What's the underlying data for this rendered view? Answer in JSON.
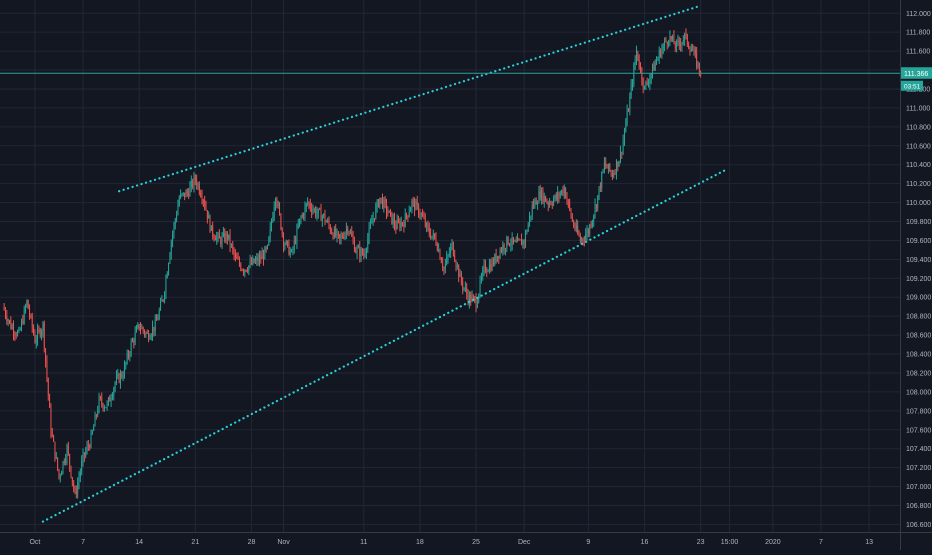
{
  "colors": {
    "background": "#131722",
    "grid": "#232735",
    "up": "#26a69a",
    "down": "#ef5350",
    "trendline": "#2ad0d8",
    "axis_text": "#b2b5be",
    "price_line": "#26a69a"
  },
  "chart_data": {
    "type": "candlestick",
    "title": "",
    "xlabel": "",
    "ylabel": "",
    "ylim": [
      106.52,
      112.14
    ],
    "y_ticks": [
      "106.600",
      "106.800",
      "107.000",
      "107.200",
      "107.400",
      "107.600",
      "107.800",
      "108.000",
      "108.200",
      "108.400",
      "108.600",
      "108.800",
      "109.000",
      "109.200",
      "109.400",
      "109.600",
      "109.800",
      "110.000",
      "110.200",
      "110.400",
      "110.600",
      "110.800",
      "111.000",
      "111.200",
      "111.400",
      "111.600",
      "111.800",
      "112.000"
    ],
    "x_ticks": [
      {
        "label": "Oct",
        "day": 0
      },
      {
        "label": "7",
        "day": 6
      },
      {
        "label": "14",
        "day": 13
      },
      {
        "label": "21",
        "day": 20
      },
      {
        "label": "28",
        "day": 27
      },
      {
        "label": "Nov",
        "day": 31
      },
      {
        "label": "11",
        "day": 41
      },
      {
        "label": "18",
        "day": 48
      },
      {
        "label": "25",
        "day": 55
      },
      {
        "label": "Dec",
        "day": 61
      },
      {
        "label": "9",
        "day": 69
      },
      {
        "label": "16",
        "day": 76
      },
      {
        "label": "23",
        "day": 83
      },
      {
        "label": "15:00",
        "day": 86.6
      },
      {
        "label": "2020",
        "day": 92
      },
      {
        "label": "7",
        "day": 98
      },
      {
        "label": "13",
        "day": 104
      }
    ],
    "x_range_days": [
      -4.35,
      107.85
    ],
    "current_price": {
      "value": 111.366,
      "label": "111.366",
      "countdown": "03:51"
    },
    "daily_path": [
      {
        "day": -4,
        "price": 108.9
      },
      {
        "day": -3,
        "price": 108.7
      },
      {
        "day": -2,
        "price": 108.6
      },
      {
        "day": -1,
        "price": 108.95
      },
      {
        "day": 0,
        "price": 108.55
      },
      {
        "day": 1,
        "price": 108.7
      },
      {
        "day": 2,
        "price": 107.6
      },
      {
        "day": 3,
        "price": 107.1
      },
      {
        "day": 4,
        "price": 107.4
      },
      {
        "day": 5,
        "price": 106.9
      },
      {
        "day": 6,
        "price": 107.3
      },
      {
        "day": 7,
        "price": 107.5
      },
      {
        "day": 8,
        "price": 107.9
      },
      {
        "day": 9,
        "price": 107.85
      },
      {
        "day": 10,
        "price": 108.1
      },
      {
        "day": 11,
        "price": 108.2
      },
      {
        "day": 12,
        "price": 108.5
      },
      {
        "day": 13,
        "price": 108.7
      },
      {
        "day": 14,
        "price": 108.6
      },
      {
        "day": 15,
        "price": 108.7
      },
      {
        "day": 16,
        "price": 109.0
      },
      {
        "day": 17,
        "price": 109.6
      },
      {
        "day": 18,
        "price": 110.05
      },
      {
        "day": 19,
        "price": 110.1
      },
      {
        "day": 20,
        "price": 110.25
      },
      {
        "day": 21,
        "price": 110.05
      },
      {
        "day": 22,
        "price": 109.7
      },
      {
        "day": 23,
        "price": 109.6
      },
      {
        "day": 24,
        "price": 109.65
      },
      {
        "day": 25,
        "price": 109.4
      },
      {
        "day": 26,
        "price": 109.3
      },
      {
        "day": 27,
        "price": 109.35
      },
      {
        "day": 28,
        "price": 109.4
      },
      {
        "day": 29,
        "price": 109.5
      },
      {
        "day": 30,
        "price": 110.1
      },
      {
        "day": 31,
        "price": 109.6
      },
      {
        "day": 32,
        "price": 109.45
      },
      {
        "day": 33,
        "price": 109.8
      },
      {
        "day": 34,
        "price": 110.0
      },
      {
        "day": 35,
        "price": 109.9
      },
      {
        "day": 36,
        "price": 109.85
      },
      {
        "day": 37,
        "price": 109.7
      },
      {
        "day": 38,
        "price": 109.6
      },
      {
        "day": 39,
        "price": 109.75
      },
      {
        "day": 40,
        "price": 109.5
      },
      {
        "day": 41,
        "price": 109.45
      },
      {
        "day": 42,
        "price": 109.8
      },
      {
        "day": 43,
        "price": 110.05
      },
      {
        "day": 44,
        "price": 109.9
      },
      {
        "day": 45,
        "price": 109.75
      },
      {
        "day": 46,
        "price": 109.8
      },
      {
        "day": 47,
        "price": 110.0
      },
      {
        "day": 48,
        "price": 109.9
      },
      {
        "day": 49,
        "price": 109.7
      },
      {
        "day": 50,
        "price": 109.6
      },
      {
        "day": 51,
        "price": 109.3
      },
      {
        "day": 52,
        "price": 109.55
      },
      {
        "day": 53,
        "price": 109.2
      },
      {
        "day": 54,
        "price": 109.0
      },
      {
        "day": 55,
        "price": 108.95
      },
      {
        "day": 56,
        "price": 109.3
      },
      {
        "day": 57,
        "price": 109.35
      },
      {
        "day": 58,
        "price": 109.5
      },
      {
        "day": 59,
        "price": 109.6
      },
      {
        "day": 60,
        "price": 109.55
      },
      {
        "day": 61,
        "price": 109.6
      },
      {
        "day": 62,
        "price": 109.95
      },
      {
        "day": 63,
        "price": 110.1
      },
      {
        "day": 64,
        "price": 110.0
      },
      {
        "day": 65,
        "price": 110.05
      },
      {
        "day": 66,
        "price": 110.15
      },
      {
        "day": 67,
        "price": 109.8
      },
      {
        "day": 68,
        "price": 109.6
      },
      {
        "day": 69,
        "price": 109.7
      },
      {
        "day": 70,
        "price": 110.0
      },
      {
        "day": 71,
        "price": 110.4
      },
      {
        "day": 72,
        "price": 110.3
      },
      {
        "day": 73,
        "price": 110.5
      },
      {
        "day": 74,
        "price": 111.0
      },
      {
        "day": 75,
        "price": 111.6
      },
      {
        "day": 76,
        "price": 111.2
      },
      {
        "day": 77,
        "price": 111.4
      },
      {
        "day": 78,
        "price": 111.6
      },
      {
        "day": 79,
        "price": 111.75
      },
      {
        "day": 80,
        "price": 111.65
      },
      {
        "day": 81,
        "price": 111.75
      },
      {
        "day": 82,
        "price": 111.6
      },
      {
        "day": 83,
        "price": 111.366
      }
    ],
    "trendlines": [
      {
        "name": "upper-channel",
        "from": {
          "day": 10.5,
          "price": 110.12
        },
        "to": {
          "day": 83,
          "price": 112.08
        }
      },
      {
        "name": "lower-channel",
        "from": {
          "day": 1,
          "price": 106.63
        },
        "to": {
          "day": 86,
          "price": 110.34
        }
      }
    ]
  }
}
